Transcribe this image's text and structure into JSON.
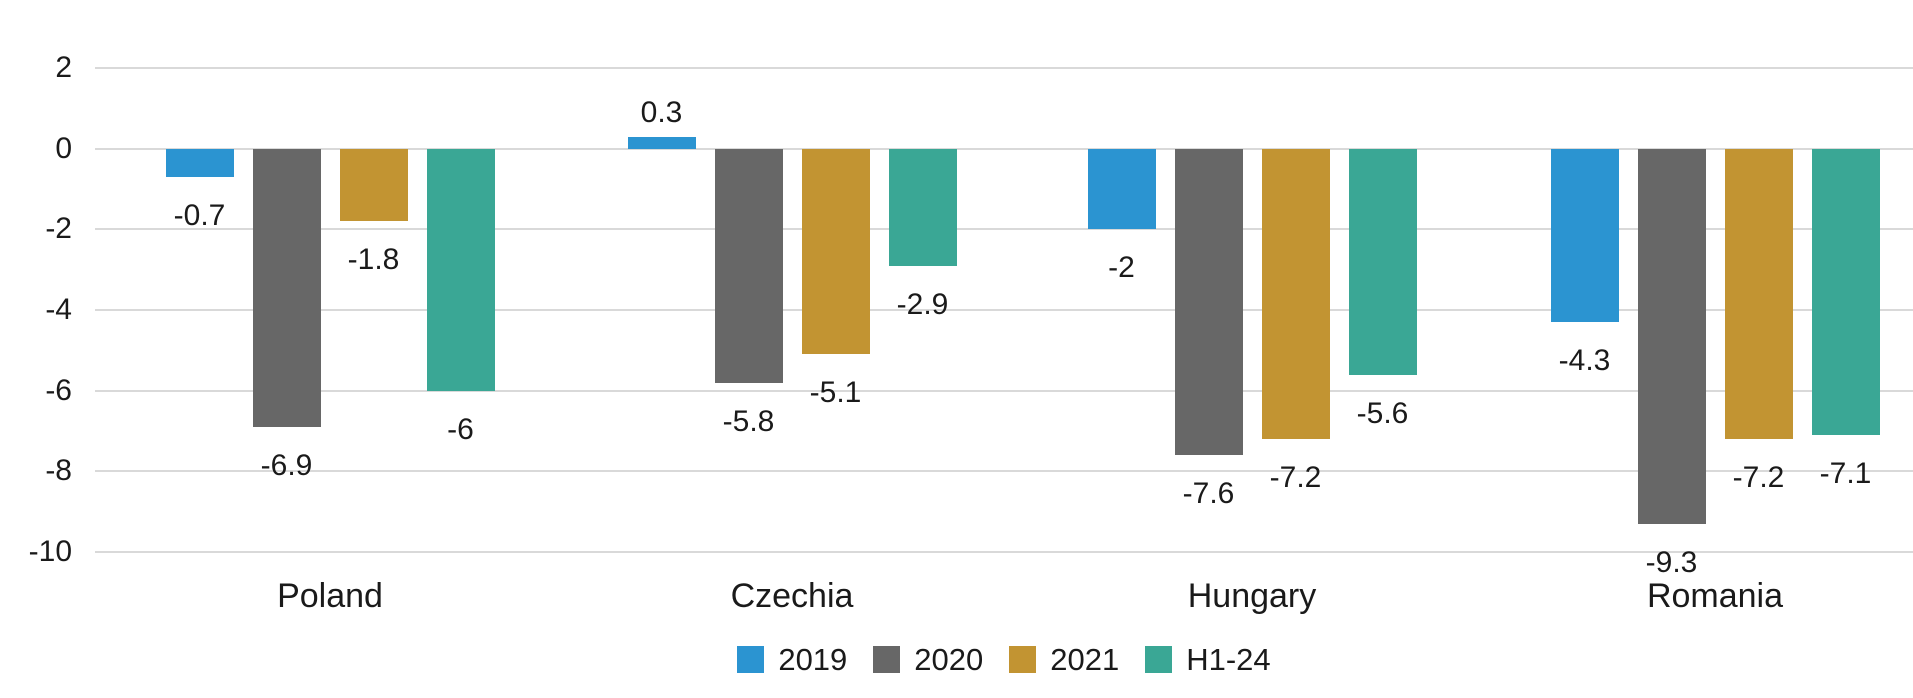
{
  "chart_data": {
    "type": "bar",
    "title": "",
    "xlabel": "",
    "ylabel": "",
    "categories": [
      "Poland",
      "Czechia",
      "Hungary",
      "Romania"
    ],
    "series": [
      {
        "name": "2019",
        "color": "#2b94d1",
        "values": [
          -0.7,
          0.3,
          -2,
          -4.3
        ],
        "value_labels": [
          "-0.7",
          "0.3",
          "-2",
          "-4.3"
        ]
      },
      {
        "name": "2020",
        "color": "#676767",
        "values": [
          -6.9,
          -5.8,
          -7.6,
          -9.3
        ],
        "value_labels": [
          "-6.9",
          "-5.8",
          "-7.6",
          "-9.3"
        ]
      },
      {
        "name": "2021",
        "color": "#c29432",
        "values": [
          -1.8,
          -5.1,
          -7.2,
          -7.2
        ],
        "value_labels": [
          "-1.8",
          "-5.1",
          "-7.2",
          "-7.2"
        ]
      },
      {
        "name": "H1-24",
        "color": "#3aa795",
        "values": [
          -6,
          -2.9,
          -5.6,
          -7.1
        ],
        "value_labels": [
          "-6",
          "-2.9",
          "-5.6",
          "-7.1"
        ]
      }
    ],
    "y_ticks": [
      2,
      0,
      -2,
      -4,
      -6,
      -8,
      -10
    ],
    "y_tick_labels": [
      "2",
      "0",
      "-2",
      "-4",
      "-6",
      "-8",
      "-10"
    ],
    "ylim": [
      -10,
      2
    ],
    "grid": "horizontal-light",
    "legend_position": "bottom-center"
  },
  "colors": {
    "grid": "#d9d9d9",
    "text": "#1a1a1a",
    "background": "#ffffff"
  }
}
